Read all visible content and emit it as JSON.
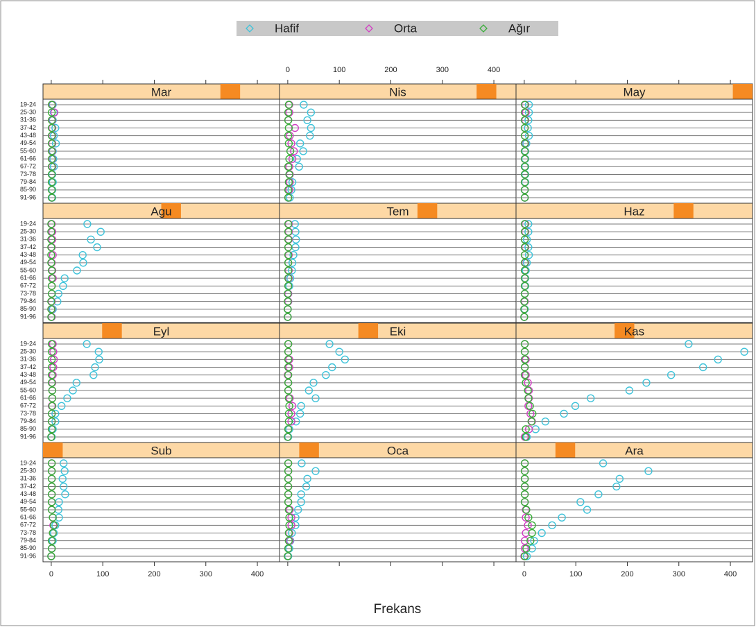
{
  "chart_data": {
    "type": "dotplot",
    "xlabel": "Frekans",
    "categories": [
      "19-24",
      "25-30",
      "31-36",
      "37-42",
      "43-48",
      "49-54",
      "55-60",
      "61-66",
      "67-72",
      "73-78",
      "79-84",
      "85-90",
      "91-96"
    ],
    "series": [
      {
        "name": "Hafif",
        "color": "#3ec3da"
      },
      {
        "name": "Orta",
        "color": "#d23fc4"
      },
      {
        "name": "Ağır",
        "color": "#3aae3a"
      }
    ],
    "xlim": [
      -16,
      443
    ],
    "xticks": [
      0,
      100,
      200,
      300,
      400
    ],
    "panels": [
      {
        "title": "Mar",
        "values": [
          [
            3,
            5,
            3,
            8,
            5,
            9,
            3,
            4,
            5,
            2,
            3,
            2,
            2
          ],
          [
            2,
            6,
            2,
            2,
            2,
            2,
            2,
            2,
            2,
            1,
            1,
            1,
            1
          ],
          [
            1,
            1,
            1,
            1,
            1,
            1,
            1,
            1,
            1,
            1,
            1,
            1,
            1
          ]
        ]
      },
      {
        "title": "Nis",
        "values": [
          [
            31,
            45,
            38,
            45,
            43,
            24,
            30,
            18,
            22,
            4,
            9,
            7,
            4
          ],
          [
            3,
            3,
            1,
            14,
            4,
            7,
            12,
            9,
            3,
            4,
            4,
            3,
            1
          ],
          [
            2,
            1,
            1,
            2,
            1,
            2,
            5,
            3,
            1,
            3,
            2,
            1,
            1
          ]
        ]
      },
      {
        "title": "May",
        "values": [
          [
            9,
            9,
            8,
            7,
            9,
            4,
            2,
            2,
            2,
            2,
            2,
            1,
            1
          ],
          [
            2,
            3,
            2,
            1,
            1,
            2,
            1,
            1,
            1,
            1,
            1,
            1,
            1
          ],
          [
            1,
            1,
            1,
            1,
            1,
            1,
            1,
            1,
            1,
            1,
            1,
            1,
            1
          ]
        ]
      },
      {
        "title": "Agu",
        "values": [
          [
            70,
            96,
            77,
            89,
            61,
            62,
            50,
            26,
            23,
            14,
            12,
            3,
            1
          ],
          [
            1,
            2,
            2,
            1,
            3,
            1,
            2,
            3,
            1,
            1,
            1,
            1,
            1
          ],
          [
            0,
            0,
            0,
            0,
            0,
            0,
            1,
            1,
            1,
            1,
            0,
            0,
            0
          ]
        ]
      },
      {
        "title": "Tem",
        "values": [
          [
            14,
            15,
            16,
            15,
            11,
            9,
            8,
            5,
            3,
            1,
            1,
            0,
            0
          ],
          [
            2,
            2,
            2,
            1,
            2,
            1,
            2,
            2,
            1,
            1,
            1,
            0,
            0
          ],
          [
            1,
            1,
            1,
            1,
            1,
            1,
            1,
            1,
            1,
            0,
            0,
            0,
            0
          ]
        ]
      },
      {
        "title": "Haz",
        "values": [
          [
            8,
            8,
            5,
            8,
            9,
            5,
            3,
            2,
            2,
            1,
            1,
            1,
            0
          ],
          [
            2,
            2,
            1,
            2,
            1,
            2,
            1,
            1,
            1,
            1,
            1,
            0,
            0
          ],
          [
            1,
            1,
            1,
            1,
            1,
            1,
            1,
            1,
            1,
            1,
            0,
            0,
            0
          ]
        ]
      },
      {
        "title": "Eyl",
        "values": [
          [
            69,
            92,
            93,
            85,
            82,
            49,
            42,
            31,
            20,
            8,
            8,
            3,
            1
          ],
          [
            3,
            4,
            5,
            4,
            3,
            2,
            2,
            2,
            1,
            1,
            1,
            1,
            0
          ],
          [
            1,
            1,
            1,
            1,
            1,
            1,
            2,
            2,
            2,
            1,
            1,
            1,
            0
          ]
        ]
      },
      {
        "title": "Eki",
        "values": [
          [
            81,
            100,
            111,
            86,
            74,
            50,
            41,
            54,
            26,
            24,
            16,
            3,
            1
          ],
          [
            1,
            1,
            3,
            3,
            0,
            1,
            1,
            4,
            9,
            7,
            7,
            1,
            0
          ],
          [
            1,
            1,
            1,
            1,
            1,
            1,
            1,
            2,
            3,
            2,
            2,
            1,
            0
          ]
        ]
      },
      {
        "title": "Kas",
        "values": [
          [
            319,
            427,
            376,
            347,
            285,
            237,
            204,
            129,
            99,
            77,
            41,
            22,
            5
          ],
          [
            1,
            1,
            3,
            1,
            3,
            7,
            9,
            9,
            8,
            12,
            15,
            9,
            1
          ],
          [
            1,
            1,
            1,
            1,
            1,
            3,
            7,
            8,
            11,
            16,
            14,
            3,
            3
          ]
        ]
      },
      {
        "title": "Sub",
        "values": [
          [
            24,
            26,
            22,
            24,
            27,
            15,
            14,
            15,
            8,
            5,
            3,
            1,
            0
          ],
          [
            1,
            1,
            1,
            1,
            1,
            1,
            1,
            3,
            4,
            3,
            1,
            1,
            0
          ],
          [
            1,
            1,
            1,
            1,
            1,
            1,
            1,
            3,
            5,
            3,
            1,
            1,
            0
          ]
        ]
      },
      {
        "title": "Oca",
        "values": [
          [
            27,
            54,
            38,
            36,
            26,
            26,
            20,
            15,
            15,
            8,
            5,
            3,
            1
          ],
          [
            1,
            1,
            1,
            1,
            1,
            1,
            4,
            7,
            7,
            3,
            4,
            1,
            0
          ],
          [
            1,
            1,
            1,
            1,
            1,
            1,
            2,
            3,
            3,
            2,
            2,
            1,
            0
          ]
        ]
      },
      {
        "title": "Ara",
        "values": [
          [
            153,
            241,
            185,
            179,
            144,
            109,
            122,
            73,
            54,
            34,
            19,
            15,
            5
          ],
          [
            1,
            1,
            1,
            1,
            1,
            1,
            3,
            3,
            7,
            3,
            1,
            1,
            0
          ],
          [
            1,
            1,
            1,
            1,
            1,
            1,
            4,
            8,
            15,
            15,
            12,
            4,
            1
          ]
        ]
      }
    ]
  }
}
